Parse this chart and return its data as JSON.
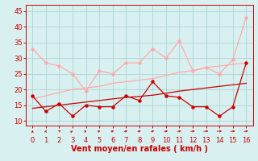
{
  "x": [
    0,
    1,
    2,
    3,
    4,
    5,
    6,
    7,
    8,
    9,
    10,
    11,
    12,
    13,
    14,
    15,
    16
  ],
  "line_rafales_y": [
    33,
    28.5,
    27.5,
    25,
    19.5,
    26,
    25,
    28.5,
    28.5,
    33,
    30,
    35.5,
    26,
    27,
    25,
    29.5,
    43
  ],
  "line_moyen_y": [
    18,
    13,
    15.5,
    11.5,
    15,
    14.5,
    14.5,
    18,
    16.5,
    22.5,
    18,
    17.5,
    14.5,
    14.5,
    11.5,
    14.5,
    28.5
  ],
  "line_reg_upper_y": [
    17,
    18,
    19,
    20,
    20.5,
    21,
    22,
    22.5,
    23,
    23.5,
    24.5,
    25.5,
    26,
    27,
    27.5,
    28,
    28.5
  ],
  "line_reg_lower_y": [
    14,
    14.5,
    15,
    15.5,
    16,
    16.5,
    17,
    17.5,
    17.8,
    18.2,
    18.8,
    19.5,
    20,
    20.5,
    21,
    21.5,
    22
  ],
  "line_rafales_color": "#ffaaaa",
  "line_moyen_color": "#cc0000",
  "line_reg_upper_color": "#ffaaaa",
  "line_reg_lower_color": "#cc0000",
  "xlabel": "Vent moyen/en rafales ( km/h )",
  "xlabel_color": "#cc0000",
  "xlabel_fontsize": 7,
  "yticks": [
    10,
    15,
    20,
    25,
    30,
    35,
    40,
    45
  ],
  "xticks": [
    0,
    1,
    2,
    3,
    4,
    5,
    6,
    7,
    8,
    9,
    10,
    11,
    12,
    13,
    14,
    15,
    16
  ],
  "ylim": [
    8.5,
    47
  ],
  "xlim": [
    -0.5,
    16.5
  ],
  "bg_color": "#d8f0f0",
  "grid_color": "#aed4d4",
  "tick_color": "#cc0000",
  "tick_fontsize": 6,
  "arrow_color": "#cc0000",
  "arrow_angles": [
    0,
    5,
    20,
    30,
    40,
    45,
    50,
    55,
    55,
    55,
    60,
    60,
    70,
    75,
    85,
    75,
    65
  ]
}
